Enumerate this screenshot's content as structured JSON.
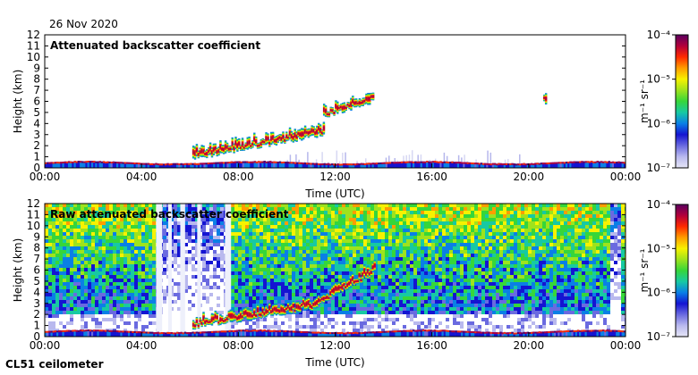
{
  "page": {
    "date": "26 Nov 2020",
    "instrument": "CL51 ceilometer"
  },
  "colormap": [
    "#e6e6f7",
    "#b9b9ee",
    "#6a6ae0",
    "#1414d2",
    "#0a7fe6",
    "#17c9a3",
    "#36d63a",
    "#9ee31d",
    "#f7f200",
    "#ff9d00",
    "#ff2a00",
    "#b3003a",
    "#5a0060"
  ],
  "chart_data": [
    {
      "type": "heatmap",
      "title": "Attenuated backscatter coefficient",
      "xlabel": "Time (UTC)",
      "ylabel": "Height (km)",
      "xlim": [
        0,
        24
      ],
      "ylim": [
        0,
        12
      ],
      "x_ticks": [
        "00:00",
        "04:00",
        "08:00",
        "12:00",
        "16:00",
        "20:00",
        "00:00"
      ],
      "y_ticks": [
        "0",
        "1",
        "2",
        "3",
        "4",
        "5",
        "6",
        "7",
        "8",
        "9",
        "10",
        "11",
        "12"
      ],
      "colorbar": {
        "label": "m⁻¹ sr⁻¹",
        "ticks": [
          "10⁻⁴",
          "10⁻⁵",
          "10⁻⁶",
          "10⁻⁷"
        ],
        "range_log10": [
          -7,
          -4
        ]
      },
      "features": [
        {
          "kind": "boundary layer",
          "t_start": 0,
          "t_end": 24,
          "height_km": 0.3
        },
        {
          "kind": "cloud layer",
          "t_start": 6.1,
          "t_end": 11.5,
          "height_km_start": 0.8,
          "height_km_end": 3.0
        },
        {
          "kind": "cloud layer",
          "t_start": 11.5,
          "t_end": 13.6,
          "height_km_start": 4.6,
          "height_km_end": 6.0
        },
        {
          "kind": "cloud",
          "t_start": 20.6,
          "t_end": 20.7,
          "height_km_start": 5.9,
          "height_km_end": 5.9
        }
      ]
    },
    {
      "type": "heatmap",
      "title": "Raw attenuated backscatter coefficient",
      "xlabel": "Time (UTC)",
      "ylabel": "Height (km)",
      "xlim": [
        0,
        24
      ],
      "ylim": [
        0,
        12
      ],
      "x_ticks": [
        "00:00",
        "04:00",
        "08:00",
        "12:00",
        "16:00",
        "20:00",
        "00:00"
      ],
      "y_ticks": [
        "0",
        "1",
        "2",
        "3",
        "4",
        "5",
        "6",
        "7",
        "8",
        "9",
        "10",
        "11",
        "12"
      ],
      "colorbar": {
        "label": "m⁻¹ sr⁻¹",
        "ticks": [
          "10⁻⁴",
          "10⁻⁵",
          "10⁻⁶",
          "10⁻⁷"
        ],
        "range_log10": [
          -7,
          -4
        ]
      },
      "features": [
        {
          "kind": "boundary layer",
          "t_start": 0,
          "t_end": 24,
          "height_km": 0.3
        },
        {
          "kind": "cloud layer",
          "t_start": 6.1,
          "t_end": 11.0,
          "height_km_start": 0.8,
          "height_km_end": 2.5
        },
        {
          "kind": "cloud layer",
          "t_start": 11.0,
          "t_end": 13.6,
          "height_km_start": 2.5,
          "height_km_end": 5.7
        }
      ]
    }
  ]
}
